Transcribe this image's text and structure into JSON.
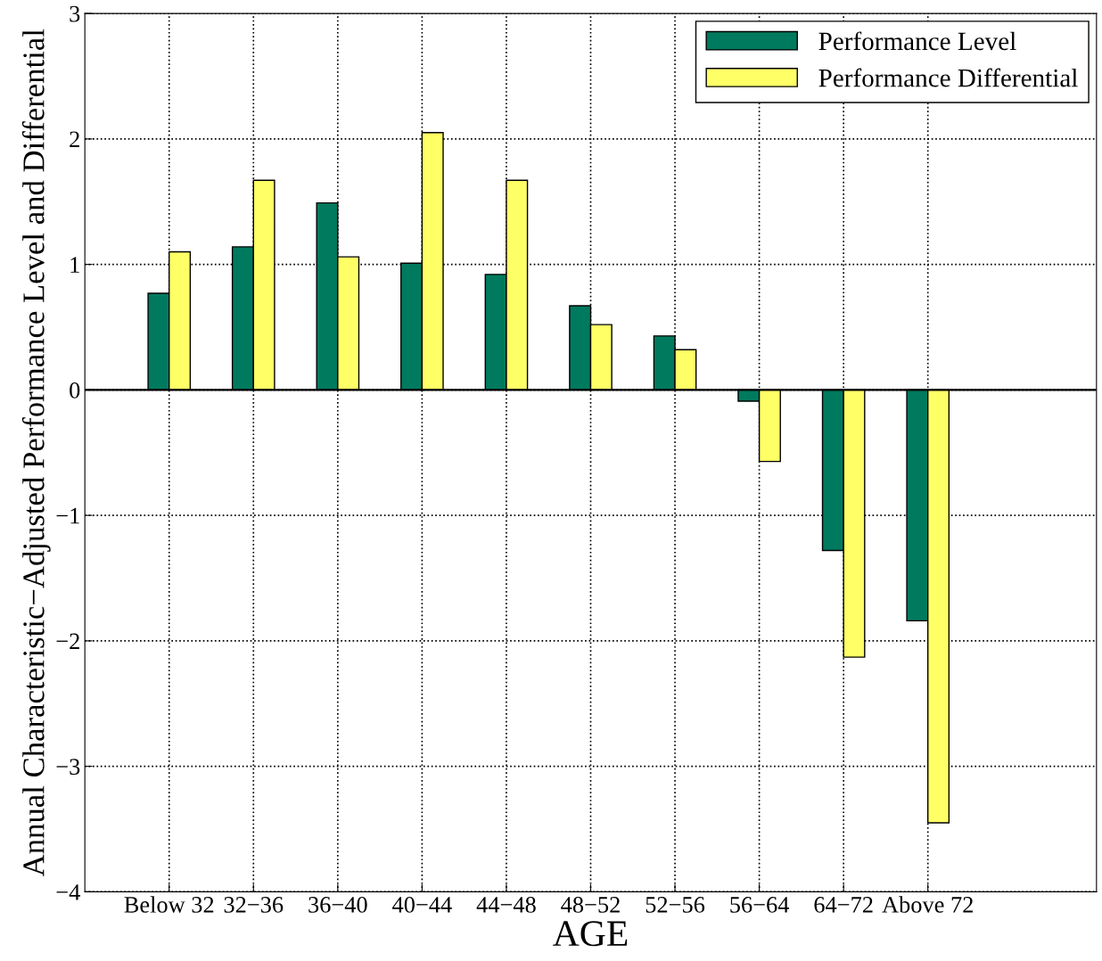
{
  "chart_data": {
    "type": "bar",
    "xlabel": "AGE",
    "ylabel": "Annual Characteristic−Adjusted Performance Level and Differential",
    "categories": [
      "Below 32",
      "32−36",
      "36−40",
      "40−44",
      "44−48",
      "48−52",
      "52−56",
      "56−64",
      "64−72",
      "Above 72"
    ],
    "series": [
      {
        "name": "Performance Level",
        "color": "#007a5e",
        "values": [
          0.77,
          1.14,
          1.49,
          1.01,
          0.92,
          0.67,
          0.43,
          -0.09,
          -1.28,
          -1.84
        ]
      },
      {
        "name": "Performance Differential",
        "color": "#ffff66",
        "values": [
          1.1,
          1.67,
          1.06,
          2.05,
          1.67,
          0.52,
          0.32,
          -0.57,
          -2.13,
          -3.45
        ]
      }
    ],
    "ylim": [
      -4,
      3
    ],
    "yticks": [
      -4,
      -3,
      -2,
      -1,
      0,
      1,
      2,
      3
    ],
    "grid": true,
    "legend": "top right",
    "ref_lines": [
      {
        "axis": "y",
        "value": 0,
        "color": "#000000",
        "line_style": "solid"
      }
    ]
  }
}
